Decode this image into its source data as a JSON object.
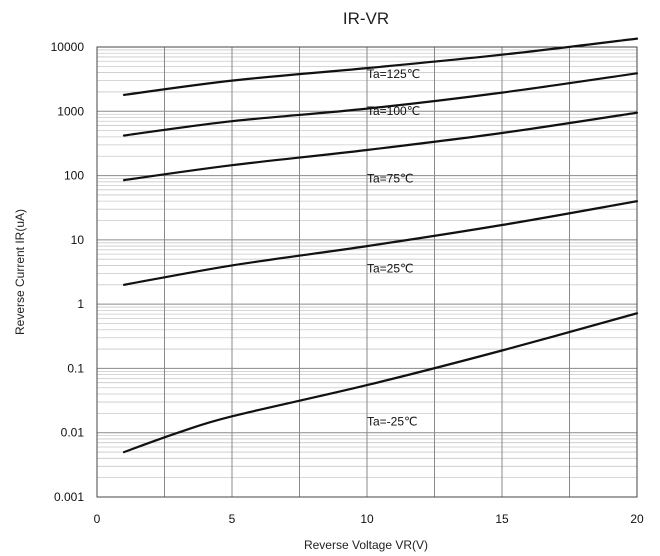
{
  "chart_data": {
    "type": "line",
    "title": "IR-VR",
    "xlabel": "Reverse Voltage  VR(V)",
    "ylabel": "Reverse Current   IR(uA)",
    "x_scale": "linear",
    "y_scale": "log",
    "xlim": [
      0,
      20
    ],
    "ylim": [
      0.001,
      10000
    ],
    "grid": true,
    "x_ticks": [
      {
        "value": 0,
        "label": "0"
      },
      {
        "value": 5,
        "label": "5"
      },
      {
        "value": 10,
        "label": "10"
      },
      {
        "value": 15,
        "label": "15"
      },
      {
        "value": 20,
        "label": "20"
      }
    ],
    "y_ticks": [
      {
        "value": 0.001,
        "label": "0.001"
      },
      {
        "value": 0.01,
        "label": "0.01"
      },
      {
        "value": 0.1,
        "label": "0.1"
      },
      {
        "value": 1,
        "label": "1"
      },
      {
        "value": 10,
        "label": "10"
      },
      {
        "value": 100,
        "label": "100"
      },
      {
        "value": 1000,
        "label": "1000"
      },
      {
        "value": 10000,
        "label": "10000"
      }
    ],
    "series": [
      {
        "name": "Ta=125℃",
        "label_at": {
          "x": 10,
          "y": 3300
        },
        "points": [
          [
            1,
            1800
          ],
          [
            5,
            3000
          ],
          [
            10,
            4700
          ],
          [
            15,
            7600
          ],
          [
            20,
            13500
          ]
        ]
      },
      {
        "name": "Ta=100℃",
        "label_at": {
          "x": 10,
          "y": 880
        },
        "points": [
          [
            1,
            420
          ],
          [
            5,
            700
          ],
          [
            10,
            1100
          ],
          [
            15,
            1950
          ],
          [
            20,
            3900
          ]
        ]
      },
      {
        "name": "Ta=75℃",
        "label_at": {
          "x": 10,
          "y": 78
        },
        "points": [
          [
            1,
            85
          ],
          [
            5,
            145
          ],
          [
            10,
            250
          ],
          [
            15,
            460
          ],
          [
            20,
            950
          ]
        ]
      },
      {
        "name": "Ta=25℃",
        "label_at": {
          "x": 10,
          "y": 3.1
        },
        "points": [
          [
            1,
            2
          ],
          [
            5,
            4
          ],
          [
            10,
            8
          ],
          [
            15,
            17
          ],
          [
            20,
            40
          ]
        ]
      },
      {
        "name": "Ta=-25℃",
        "label_at": {
          "x": 10,
          "y": 0.013
        },
        "points": [
          [
            1,
            0.005
          ],
          [
            3,
            0.01
          ],
          [
            5,
            0.018
          ],
          [
            10,
            0.055
          ],
          [
            15,
            0.19
          ],
          [
            20,
            0.72
          ]
        ]
      }
    ]
  }
}
